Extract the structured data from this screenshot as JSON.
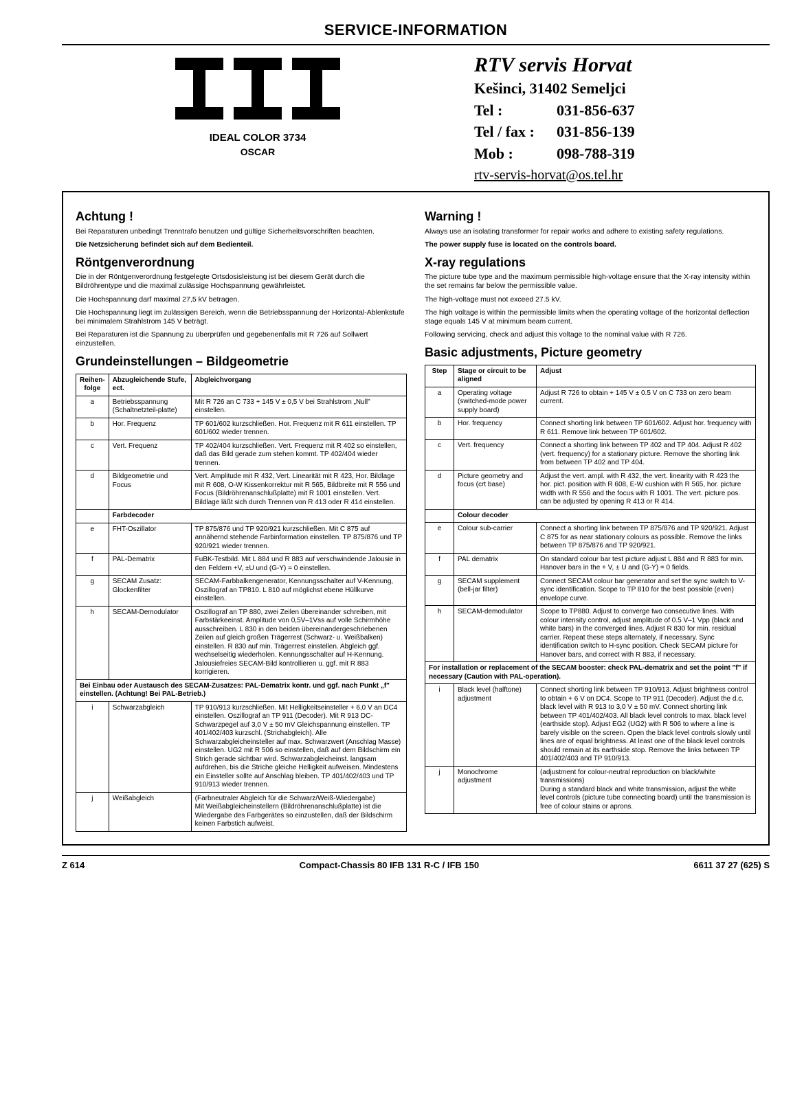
{
  "masthead": "SERVICE-INFORMATION",
  "logo_letters": "ITT",
  "model": "IDEAL COLOR 3734",
  "model_sub": "OSCAR",
  "servis": {
    "name": "RTV servis Horvat",
    "address": "Kešinci, 31402 Semeljci",
    "tel_label": "Tel :",
    "tel": "031-856-637",
    "fax_label": "Tel / fax :",
    "fax": "031-856-139",
    "mob_label": "Mob :",
    "mob": "098-788-319",
    "email": "rtv-servis-horvat@os.tel.hr"
  },
  "de": {
    "achtung": "Achtung !",
    "achtung_p1": "Bei Reparaturen unbedingt Trenntrafo benutzen und gültige Sicherheitsvorschriften beachten.",
    "achtung_p2": "Die Netzsicherung befindet sich auf dem Bedienteil.",
    "roentgen": "Röntgenverordnung",
    "roentgen_p1": "Die in der Röntgenverordnung festgelegte Ortsdosisleistung ist bei diesem Gerät durch die Bildröhrentype und die maximal zulässige Hochspannung gewährleistet.",
    "roentgen_p2": "Die Hochspannung darf maximal 27,5 kV betragen.",
    "roentgen_p3": "Die Hochspannung liegt im zulässigen Bereich, wenn die Betriebsspannung der Horizontal-Ablenkstufe bei minimalem Strahlstrom 145 V beträgt.",
    "roentgen_p4": "Bei Reparaturen ist die Spannung zu überprüfen und gegebenenfalls mit R 726 auf Sollwert einzustellen.",
    "grund": "Grundeinstellungen – Bildgeometrie",
    "th1": "Reihen-folge",
    "th2": "Abzugleichende Stufe, ect.",
    "th3": "Abgleichvorgang",
    "rows": [
      {
        "s": "a",
        "c": "Betriebsspannung (Schaltnetzteil-platte)",
        "a": "Mit R 726 an C 733 + 145 V ± 0,5 V bei Strahlstrom „Null\" einstellen."
      },
      {
        "s": "b",
        "c": "Hor. Frequenz",
        "a": "TP 601/602 kurzschließen. Hor. Frequenz mit R 611 einstellen. TP 601/602 wieder trennen."
      },
      {
        "s": "c",
        "c": "Vert. Frequenz",
        "a": "TP 402/404 kurzschließen. Vert. Frequenz mit R 402 so einstellen, daß das Bild gerade zum stehen kommt. TP 402/404 wieder trennen."
      },
      {
        "s": "d",
        "c": "Bildgeometrie und Focus",
        "a": "Vert. Amplitude mit R 432, Vert. Linearität mit R 423, Hor. Bildlage mit R 608, O-W Kissenkorrektur mit R 565, Bildbreite mit R 556 und Focus (Bildröhrenanschlußplatte) mit R 1001 einstellen. Vert. Bildlage läßt sich durch Trennen von R 413 oder R 414 einstellen."
      }
    ],
    "sub_farb": "Farbdecoder",
    "rows2": [
      {
        "s": "e",
        "c": "FHT-Oszillator",
        "a": "TP 875/876 und TP 920/921 kurzschließen. Mit C 875 auf annähernd stehende Farbinformation einstellen. TP 875/876 und TP 920/921 wieder trennen."
      },
      {
        "s": "f",
        "c": "PAL-Dematrix",
        "a": "FuBK-Testbild. Mit L 884 und R 883 auf verschwindende Jalousie in den Feldern +V, ±U und (G-Y) = 0 einstellen."
      },
      {
        "s": "g",
        "c": "SECAM Zusatz: Glockenfilter",
        "a": "SECAM-Farbbalkengenerator, Kennungsschalter auf V-Kennung, Oszillograf an TP810. L 810 auf möglichst ebene Hüllkurve einstellen."
      },
      {
        "s": "h",
        "c": "SECAM-Demodulator",
        "a": "Oszillograf an TP 880, zwei Zeilen übereinander schreiben, mit Farbstärkeeinst. Amplitude von 0,5V–1Vss auf volle Schirmhöhe ausschreiben. L 830 in den beiden übereinandergeschriebenen Zeilen auf gleich großen Trägerrest (Schwarz- u. Weißbalken) einstellen. R 830 auf min. Trägerrest einstellen. Abgleich ggf. wechselseitig wiederholen. Kennungsschalter auf H-Kennung. Jalousiefreies SECAM-Bild kontrollieren u. ggf. mit R 883 korrigieren."
      }
    ],
    "note": "Bei Einbau oder Austausch des SECAM-Zusatzes: PAL-Dematrix kontr. und ggf. nach Punkt „f\" einstellen. (Achtung! Bei PAL-Betrieb.)",
    "rows3": [
      {
        "s": "i",
        "c": "Schwarzabgleich",
        "a": "TP 910/913 kurzschließen. Mit Helligkeitseinsteller + 6,0 V an DC4 einstellen. Oszillograf an TP 911 (Decoder). Mit R 913 DC-Schwarzpegel auf 3,0 V ± 50 mV Gleichspannung einstellen. TP 401/402/403 kurzschl. (Strichabgleich). Alle Schwarzabgleicheinsteller auf max. Schwarzwert (Anschlag Masse) einstellen. UG2 mit R 506 so einstellen, daß auf dem Bildschirm ein Strich gerade sichtbar wird. Schwarzabgleicheinst. langsam aufdrehen, bis die Striche gleiche Helligkeit aufweisen. Mindestens ein Einsteller sollte auf Anschlag bleiben. TP 401/402/403 und TP 910/913 wieder trennen."
      },
      {
        "s": "j",
        "c": "Weißabgleich",
        "a": "(Farbneutraler Abgleich für die Schwarz/Weiß-Wiedergabe)\nMit Weißabgleicheinstellern (Bildröhrenanschlußplatte) ist die Wiedergabe des Farbgerätes so einzustellen, daß der Bildschirm keinen Farbstich aufweist."
      }
    ]
  },
  "en": {
    "warning": "Warning !",
    "warning_p1": "Always use an isolating transformer for repair works and adhere to existing safety regulations.",
    "warning_p2": "The power supply fuse is located on the controls board.",
    "xray": "X-ray regulations",
    "xray_p1": "The picture tube type and the maximum permissible high-voltage ensure that the X-ray intensity within the set remains far below the permissible value.",
    "xray_p2": "The high-voltage must not exceed 27.5 kV.",
    "xray_p3": "The high voltage is within the permissible limits when the operating voltage of the horizontal deflection stage equals 145 V at minimum beam current.",
    "xray_p4": "Following servicing, check and adjust this voltage to the nominal value with R 726.",
    "basic": "Basic adjustments, Picture geometry",
    "th1": "Step",
    "th2": "Stage or circuit to be aligned",
    "th3": "Adjust",
    "rows": [
      {
        "s": "a",
        "c": "Operating voltage (switched-mode power supply board)",
        "a": "Adjust R 726 to obtain + 145 V ± 0.5 V on C 733 on zero beam current."
      },
      {
        "s": "b",
        "c": "Hor. frequency",
        "a": "Connect shorting link between TP 601/602. Adjust hor. frequency with R 611. Remove link between TP 601/602."
      },
      {
        "s": "c",
        "c": "Vert. frequency",
        "a": "Connect a shorting link between TP 402 and TP 404. Adjust R 402 (vert. frequency) for a stationary picture. Remove the shorting link from between TP 402 and TP 404."
      },
      {
        "s": "d",
        "c": "Picture geometry and focus (crt base)",
        "a": "Adjust the vert. ampl. with R 432, the vert. linearity with R 423 the hor. pict. position with R 608, E-W cushion with R 565, hor. picture width with R 556 and the focus with R 1001. The vert. picture pos. can be adjusted by opening R 413 or R 414."
      }
    ],
    "sub_colour": "Colour decoder",
    "rows2": [
      {
        "s": "e",
        "c": "Colour sub-carrier",
        "a": "Connect a shorting link between TP 875/876 and TP 920/921. Adjust C 875 for as near stationary colours as possible. Remove the links between TP 875/876 and TP 920/921."
      },
      {
        "s": "f",
        "c": "PAL dematrix",
        "a": "On standard colour bar test picture adjust L 884 and R 883 for min. Hanover bars in the + V, ± U and (G-Y) = 0 fields."
      },
      {
        "s": "g",
        "c": "SECAM supplement (bell-jar filter)",
        "a": "Connect SECAM colour bar generator and set the sync switch to V-sync identification. Scope to TP 810 for the best possible (even) envelope curve."
      },
      {
        "s": "h",
        "c": "SECAM-demodulator",
        "a": "Scope to TP880. Adjust to converge two consecutive lines. With colour intensity control, adjust amplitude of 0.5 V–1 Vpp (black and white bars) in the converged lines. Adjust R 830 for min. residual carrier. Repeat these steps alternately, if necessary. Sync identification switch to H-sync position. Check SECAM picture for Hanover bars, and correct with R 883, if necessary."
      }
    ],
    "note": "For installation or replacement of the SECAM booster: check PAL-dematrix and set the point \"f\" if necessary (Caution with PAL-operation).",
    "rows3": [
      {
        "s": "i",
        "c": "Black level (halftone) adjustment",
        "a": "Connect shorting link between TP 910/913. Adjust brightness control to obtain + 6 V on DC4. Scope to TP 911 (Decoder). Adjust the d.c. black level with R 913 to 3,0 V ± 50 mV. Connect shorting link between TP 401/402/403. All black level controls to max. black level (earthside stop). Adjust EG2 (UG2) with R 506 to where a line is barely visible on the screen. Open the black level controls slowly until lines are of equal brightness. At least one of the black level controls should remain at its earthside stop. Remove the links between TP 401/402/403 and TP 910/913."
      },
      {
        "s": "j",
        "c": "Monochrome adjustment",
        "a": "(adjustment for colour-neutral reproduction on black/white transmissions)\nDuring a standard black and white transmission, adjust the white level controls (picture tube connecting board) until the transmission is free of colour stains or aprons."
      }
    ]
  },
  "footer": {
    "left": "Z 614",
    "mid": "Compact-Chassis 80 IFB 131 R-C / IFB 150",
    "right": "6611 37 27  (625)  S"
  }
}
